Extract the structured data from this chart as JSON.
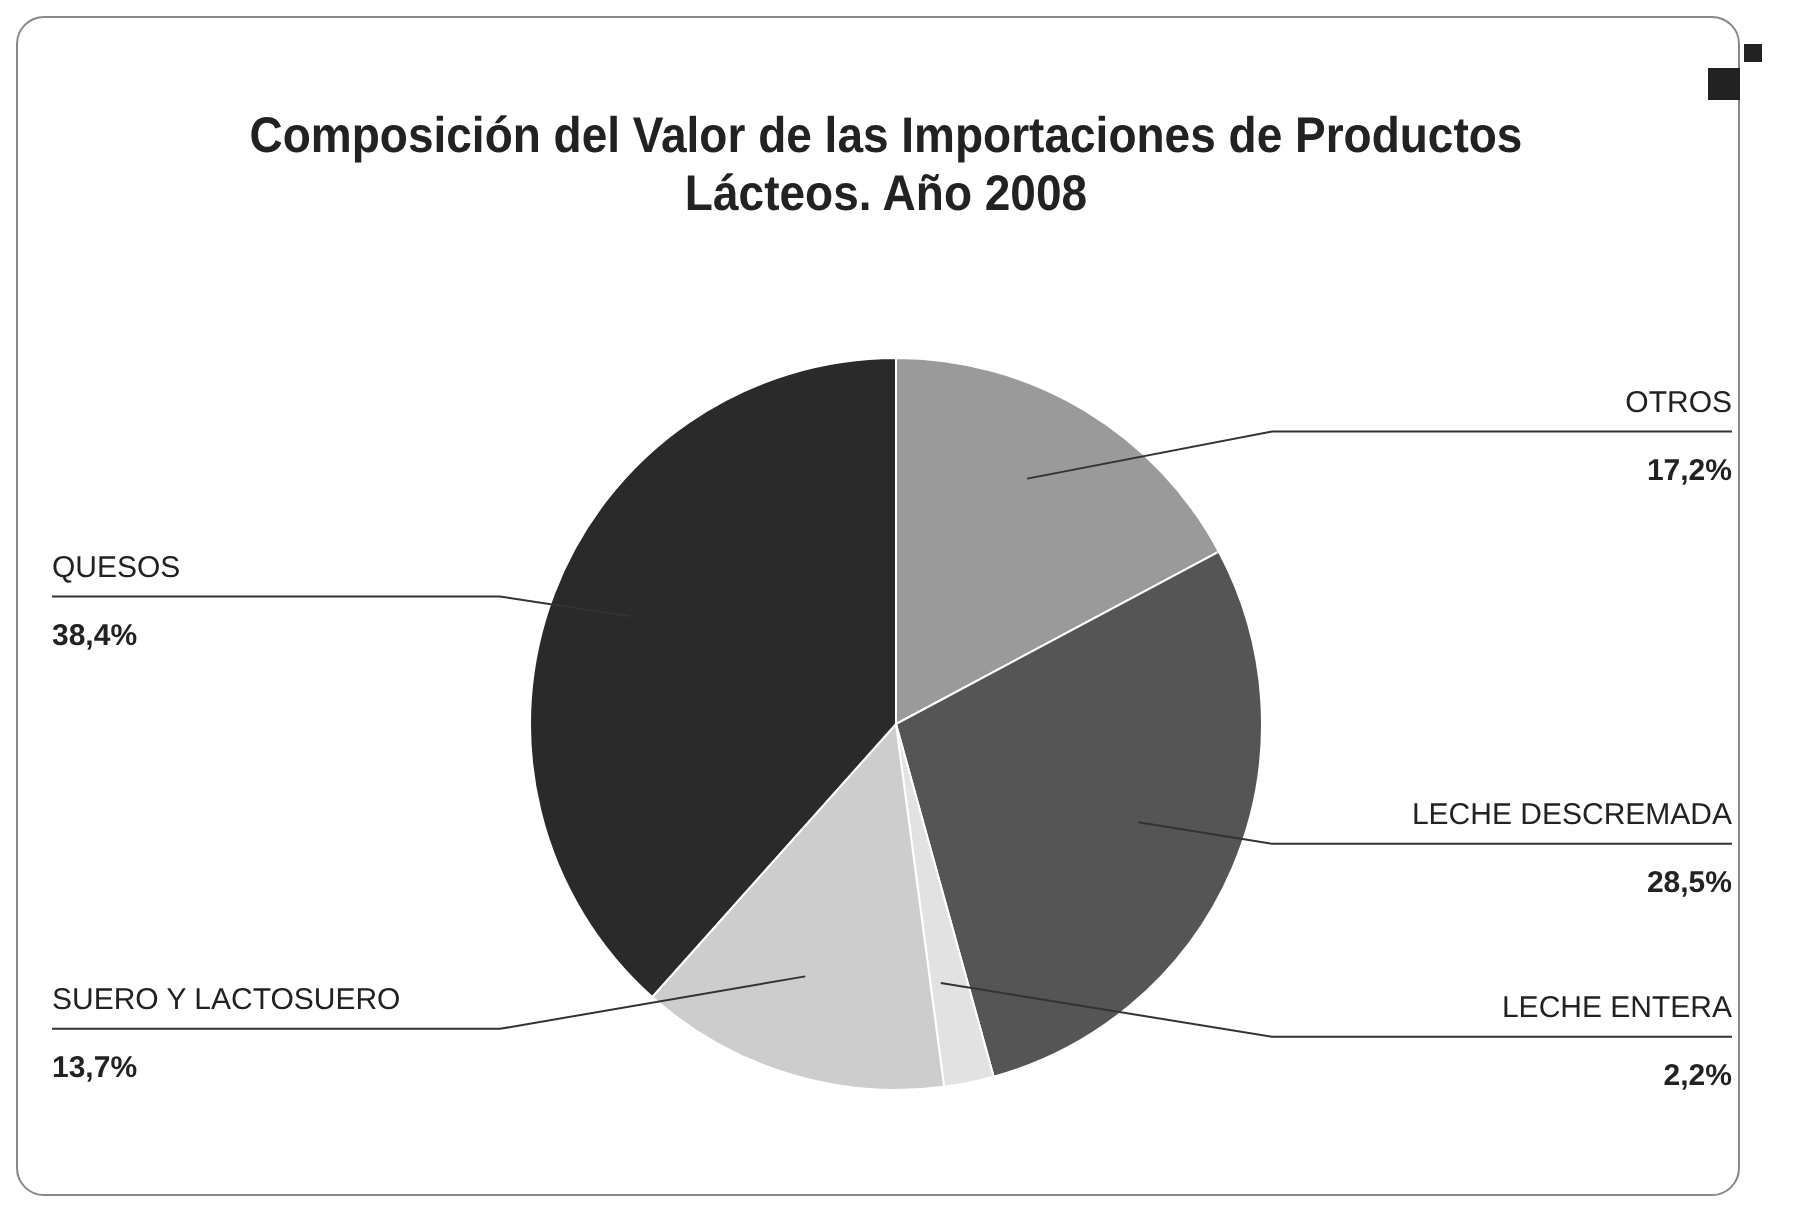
{
  "chart_data": {
    "type": "pie",
    "title": "Composición del Valor de las Importaciones de Productos Lácteos. Año 2008",
    "categories": [
      "OTROS",
      "LECHE DESCREMADA",
      "LECHE ENTERA",
      "SUERO Y LACTOSUERO",
      "QUESOS"
    ],
    "values": [
      17.2,
      28.5,
      2.2,
      13.7,
      38.4
    ],
    "colors": [
      "#9a9a9a",
      "#555555",
      "#e2e2e2",
      "#cdcdcd",
      "#2a2a2a"
    ],
    "value_labels": [
      "17,2%",
      "28,5%",
      "2,2%",
      "13,7%",
      "38,4%"
    ],
    "legend": false
  }
}
